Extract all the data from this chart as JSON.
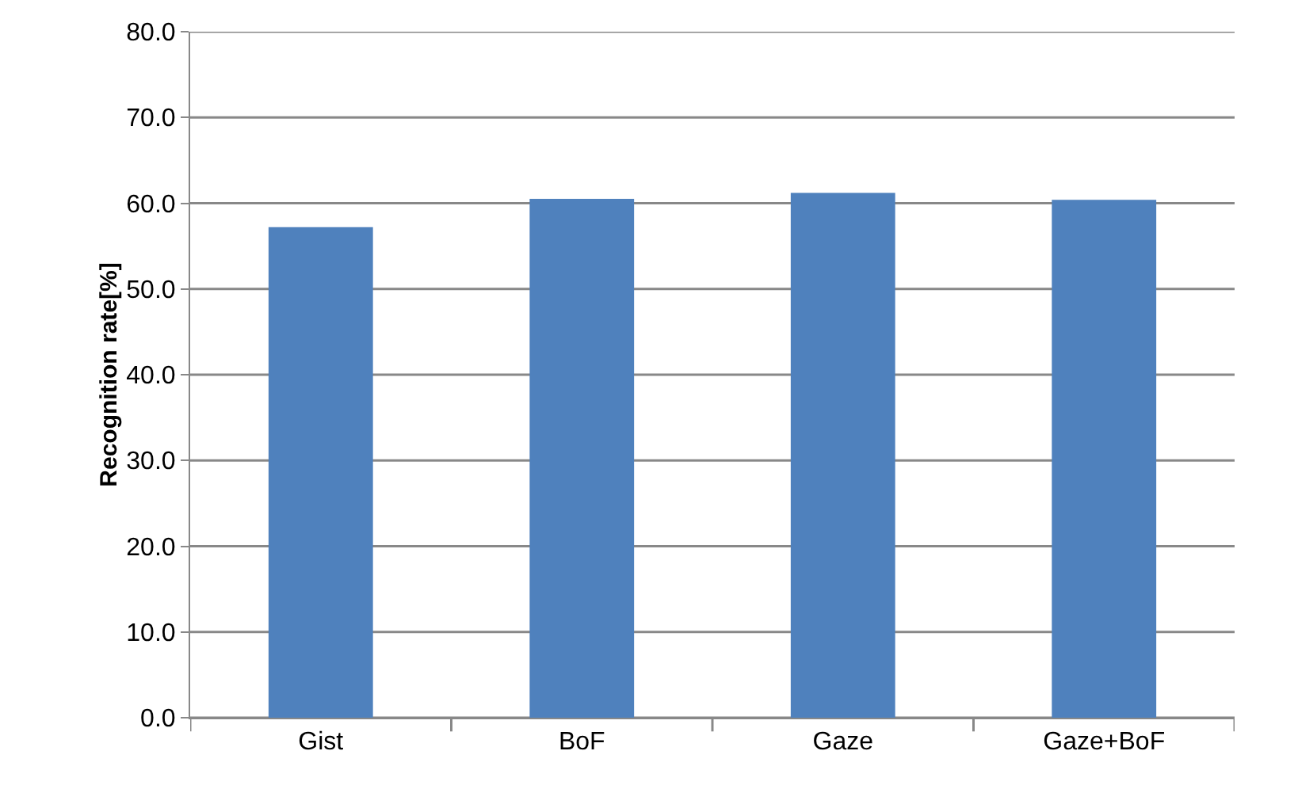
{
  "chart_data": {
    "type": "bar",
    "ylabel": "Recognition rate[%]",
    "categories": [
      "Gist",
      "BoF",
      "Gaze",
      "Gaze+BoF"
    ],
    "values": [
      57.2,
      60.5,
      61.2,
      60.4
    ],
    "color": "#4f81bd",
    "ylim": [
      0,
      80
    ],
    "yticks": [
      {
        "value": 0,
        "label": "0.0"
      },
      {
        "value": 10,
        "label": "10.0"
      },
      {
        "value": 20,
        "label": "20.0"
      },
      {
        "value": 30,
        "label": "30.0"
      },
      {
        "value": 40,
        "label": "40.0"
      },
      {
        "value": 50,
        "label": "50.0"
      },
      {
        "value": 60,
        "label": "60.0"
      },
      {
        "value": 70,
        "label": "70.0"
      },
      {
        "value": 80,
        "label": "80.0"
      }
    ],
    "grid": "y"
  }
}
